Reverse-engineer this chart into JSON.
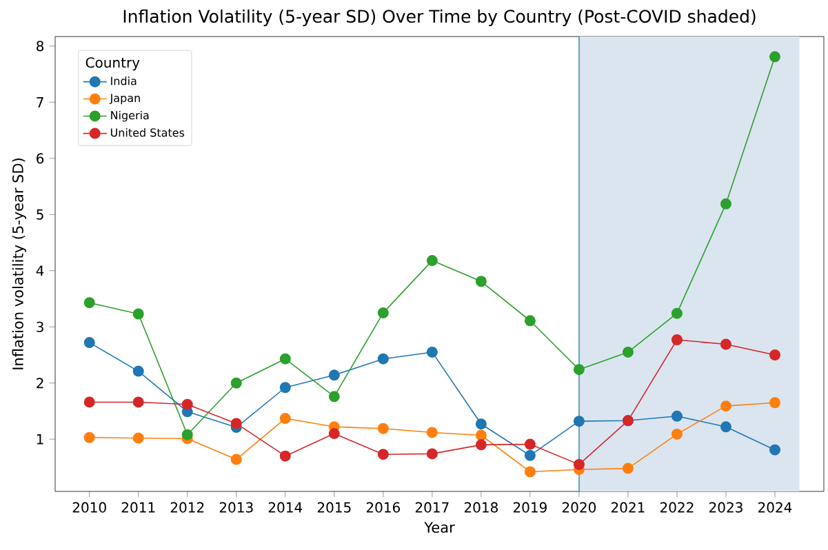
{
  "chart_data": {
    "type": "line",
    "title": "Inflation Volatility (5-year SD) Over Time by Country (Post-COVID shaded)",
    "xlabel": "Year",
    "ylabel": "Inflation volatility (5-year SD)",
    "legend_title": "Country",
    "x": [
      2010,
      2011,
      2012,
      2013,
      2014,
      2015,
      2016,
      2017,
      2018,
      2019,
      2020,
      2021,
      2022,
      2023,
      2024
    ],
    "series": [
      {
        "name": "India",
        "color": "#1f77b4",
        "values": [
          2.72,
          2.21,
          1.49,
          1.21,
          1.92,
          2.14,
          2.43,
          2.55,
          1.27,
          0.71,
          1.32,
          1.33,
          1.41,
          1.22,
          0.81
        ]
      },
      {
        "name": "Japan",
        "color": "#ff7f0e",
        "values": [
          1.03,
          1.02,
          1.01,
          0.64,
          1.37,
          1.22,
          1.19,
          1.12,
          1.07,
          0.42,
          0.46,
          0.48,
          1.09,
          1.59,
          1.65
        ]
      },
      {
        "name": "Nigeria",
        "color": "#2ca02c",
        "values": [
          3.43,
          3.23,
          1.08,
          2.0,
          2.43,
          1.76,
          3.25,
          4.18,
          3.81,
          3.11,
          2.24,
          2.55,
          3.24,
          5.19,
          7.81
        ]
      },
      {
        "name": "United States",
        "color": "#d62728",
        "values": [
          1.66,
          1.66,
          1.62,
          1.28,
          0.7,
          1.1,
          0.73,
          0.74,
          0.9,
          0.91,
          0.55,
          1.33,
          2.77,
          2.69,
          2.5
        ]
      }
    ],
    "xlim": [
      2009.3,
      2025.0
    ],
    "ylim": [
      0.07,
      8.17
    ],
    "xticks": [
      2010,
      2011,
      2012,
      2013,
      2014,
      2015,
      2016,
      2017,
      2018,
      2019,
      2020,
      2021,
      2022,
      2023,
      2024
    ],
    "yticks": [
      1,
      2,
      3,
      4,
      5,
      6,
      7,
      8
    ],
    "ref_lines": [
      {
        "axis": "x",
        "value": 2020,
        "color": "#1f77b4"
      }
    ],
    "bands": [
      {
        "axis": "x",
        "from": 2020,
        "to": 2024.5,
        "color": "#dae5f0"
      }
    ],
    "legend": "top left",
    "grid": false,
    "marker": "circle",
    "line_style": "solid"
  }
}
